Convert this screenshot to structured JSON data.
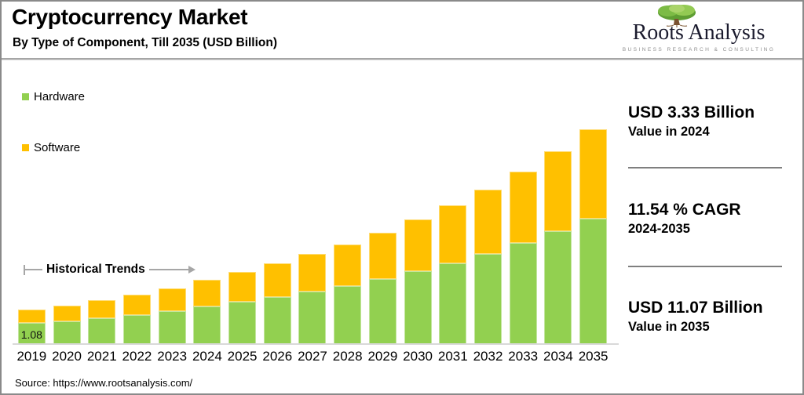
{
  "header": {
    "title": "Cryptocurrency Market",
    "subtitle": "By Type of Component, Till 2035 (USD Billion)",
    "logo": {
      "name": "Roots Analysis",
      "tagline": "BUSINESS RESEARCH & CONSULTING"
    }
  },
  "legend": [
    {
      "label": "Hardware",
      "color": "#92D050"
    },
    {
      "label": "Software",
      "color": "#FFC000"
    }
  ],
  "annotation": {
    "label": "Historical Trends"
  },
  "chart_data": {
    "type": "bar",
    "stacked": true,
    "title": "Cryptocurrency Market, By Type of Component, Till 2035 (USD Billion)",
    "unit": "USD Billion",
    "categories": [
      "2019",
      "2020",
      "2021",
      "2022",
      "2023",
      "2024",
      "2025",
      "2026",
      "2027",
      "2028",
      "2029",
      "2030",
      "2031",
      "2032",
      "2033",
      "2034",
      "2035"
    ],
    "series": [
      {
        "name": "Hardware",
        "color": "#92D050",
        "values": [
          1.08,
          1.17,
          1.32,
          1.49,
          1.68,
          1.95,
          2.17,
          2.42,
          2.7,
          3.01,
          3.36,
          3.75,
          4.18,
          4.66,
          5.2,
          5.8,
          6.47
        ]
      },
      {
        "name": "Software",
        "color": "#FFC000",
        "values": [
          0.67,
          0.8,
          0.92,
          1.05,
          1.19,
          1.38,
          1.54,
          1.72,
          1.92,
          2.14,
          2.39,
          2.66,
          2.97,
          3.31,
          3.69,
          4.12,
          4.6
        ]
      }
    ],
    "totals": [
      1.75,
      1.97,
      2.24,
      2.54,
      2.87,
      3.33,
      3.71,
      4.14,
      4.62,
      5.15,
      5.75,
      6.41,
      7.15,
      7.97,
      8.89,
      9.92,
      11.07
    ],
    "bar_label": {
      "year": "2019",
      "series": "Hardware",
      "text": "1.08"
    },
    "ylim": [
      0,
      11.07
    ],
    "grid": false,
    "legend_position": "top-left"
  },
  "stats": [
    {
      "value": "USD 3.33 Billion",
      "caption": "Value in 2024"
    },
    {
      "value": "11.54 % CAGR",
      "caption": "2024-2035"
    },
    {
      "value": "USD 11.07 Billion",
      "caption": "Value in 2035"
    }
  ],
  "footer": {
    "source": "Source: https://www.rootsanalysis.com/"
  }
}
